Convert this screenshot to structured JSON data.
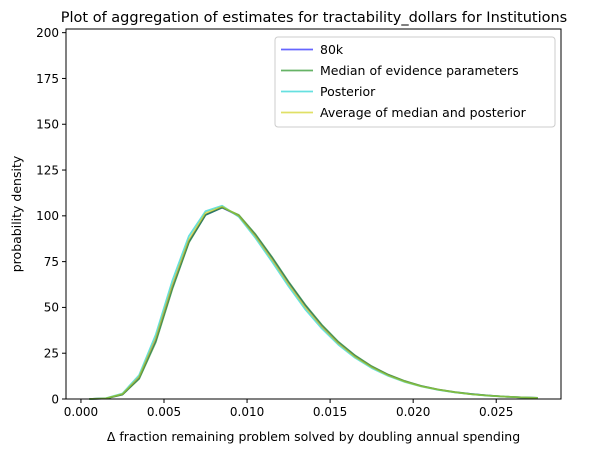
{
  "chart_data": {
    "type": "line",
    "title": "Plot of aggregation of estimates for tractability_dollars for Institutions",
    "xlabel": "Δ fraction remaining problem solved by doubling annual spending",
    "ylabel": "probability density",
    "xlim": [
      -0.0009,
      0.0289
    ],
    "ylim": [
      0,
      202
    ],
    "xticks": [
      0.0,
      0.005,
      0.01,
      0.015,
      0.02,
      0.025
    ],
    "xtick_labels": [
      "0.000",
      "0.005",
      "0.010",
      "0.015",
      "0.020",
      "0.025"
    ],
    "yticks": [
      0,
      25,
      50,
      75,
      100,
      125,
      150,
      175,
      200
    ],
    "ytick_labels": [
      "0",
      "25",
      "50",
      "75",
      "100",
      "125",
      "150",
      "175",
      "200"
    ],
    "grid": false,
    "legend_position": "upper right",
    "series": [
      {
        "name": "80k",
        "color": "#0000ff",
        "x": [
          0.0005,
          0.0015,
          0.0025,
          0.0035,
          0.0045,
          0.0055,
          0.0065,
          0.0075,
          0.0085,
          0.0095,
          0.0105,
          0.0115,
          0.0125,
          0.0135,
          0.0145,
          0.0155,
          0.0165,
          0.0175,
          0.0185,
          0.0195,
          0.0205,
          0.0215,
          0.0225,
          0.0235,
          0.0245,
          0.0255,
          0.0265,
          0.0275
        ],
        "y": [
          0.0,
          0.3,
          2.5,
          11.5,
          32.0,
          61.0,
          86.0,
          100.5,
          104.5,
          100.0,
          89.5,
          77.0,
          63.5,
          51.0,
          40.0,
          30.8,
          23.5,
          17.6,
          13.1,
          9.6,
          7.0,
          5.1,
          3.7,
          2.7,
          1.9,
          1.3,
          0.9,
          0.6
        ]
      },
      {
        "name": "Median of evidence parameters",
        "color": "#008000",
        "x": [
          0.0005,
          0.0015,
          0.0025,
          0.0035,
          0.0045,
          0.0055,
          0.0065,
          0.0075,
          0.0085,
          0.0095,
          0.0105,
          0.0115,
          0.0125,
          0.0135,
          0.0145,
          0.0155,
          0.0165,
          0.0175,
          0.0185,
          0.0195,
          0.0205,
          0.0215,
          0.0225,
          0.0235,
          0.0245,
          0.0255,
          0.0265,
          0.0275
        ],
        "y": [
          0.0,
          0.3,
          2.4,
          11.0,
          31.0,
          60.0,
          85.5,
          100.5,
          104.5,
          100.5,
          90.0,
          77.5,
          64.0,
          51.5,
          40.5,
          31.2,
          23.8,
          17.9,
          13.3,
          9.8,
          7.1,
          5.2,
          3.8,
          2.7,
          1.9,
          1.3,
          0.9,
          0.6
        ]
      },
      {
        "name": "Posterior",
        "color": "#00cccc",
        "x": [
          0.0005,
          0.0015,
          0.0025,
          0.0035,
          0.0045,
          0.0055,
          0.0065,
          0.0075,
          0.0085,
          0.0095,
          0.0105,
          0.0115,
          0.0125,
          0.0135,
          0.0145,
          0.0155,
          0.0165,
          0.0175,
          0.0185,
          0.0195,
          0.0205,
          0.0215,
          0.0225,
          0.0235,
          0.0245,
          0.0255,
          0.0265,
          0.0275
        ],
        "y": [
          0.0,
          0.4,
          3.0,
          13.0,
          35.0,
          64.5,
          89.0,
          102.5,
          105.5,
          99.5,
          88.0,
          75.0,
          61.5,
          49.0,
          38.5,
          29.6,
          22.5,
          16.9,
          12.6,
          9.3,
          6.8,
          5.0,
          3.6,
          2.6,
          1.8,
          1.3,
          0.9,
          0.6
        ]
      },
      {
        "name": "Average of median and posterior",
        "color": "#cccc00",
        "x": [
          0.0005,
          0.0015,
          0.0025,
          0.0035,
          0.0045,
          0.0055,
          0.0065,
          0.0075,
          0.0085,
          0.0095,
          0.0105,
          0.0115,
          0.0125,
          0.0135,
          0.0145,
          0.0155,
          0.0165,
          0.0175,
          0.0185,
          0.0195,
          0.0205,
          0.0215,
          0.0225,
          0.0235,
          0.0245,
          0.0255,
          0.0265,
          0.0275
        ],
        "y": [
          0.0,
          0.35,
          2.7,
          12.0,
          33.0,
          62.0,
          87.0,
          101.5,
          105.0,
          100.0,
          89.0,
          76.2,
          62.7,
          50.2,
          39.5,
          30.4,
          23.1,
          17.4,
          12.9,
          9.5,
          6.9,
          5.1,
          3.7,
          2.6,
          1.85,
          1.3,
          0.9,
          0.6
        ]
      }
    ]
  }
}
